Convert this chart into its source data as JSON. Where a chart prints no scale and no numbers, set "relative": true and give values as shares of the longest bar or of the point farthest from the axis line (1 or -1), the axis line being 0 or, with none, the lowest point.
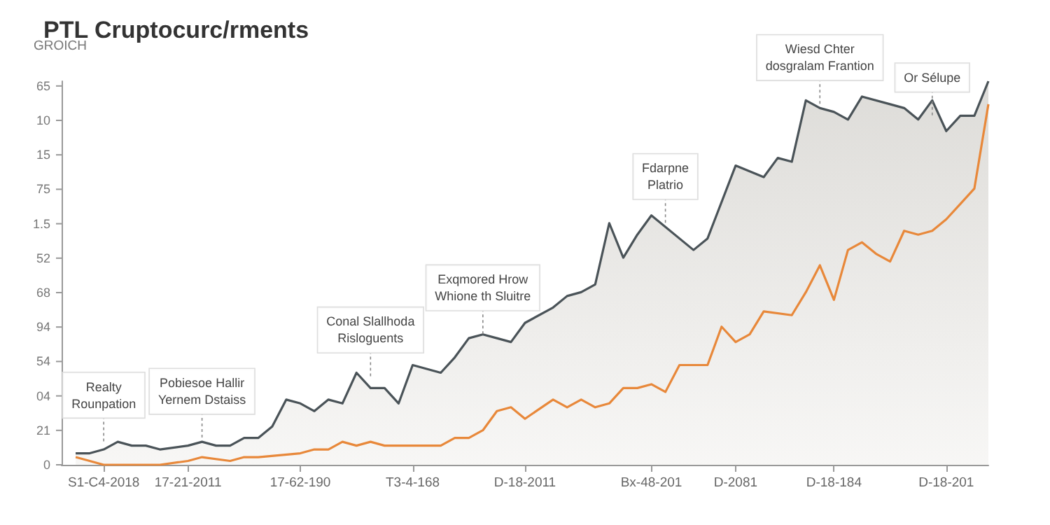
{
  "chart_data": {
    "type": "line",
    "title": "PTL Cruptocurc/rments",
    "ylabel": "GROICH",
    "relative": true,
    "categories": [
      null,
      null,
      null,
      "S1-C4-2018",
      null,
      null,
      null,
      null,
      null,
      "17-21-2011",
      null,
      null,
      null,
      null,
      null,
      null,
      null,
      "17-62-190",
      null,
      null,
      null,
      null,
      null,
      null,
      null,
      "T3-4-168",
      null,
      null,
      null,
      null,
      null,
      null,
      null,
      "D-18-2011",
      null,
      null,
      null,
      null,
      null,
      null,
      null,
      null,
      "Bx-48-201",
      null,
      null,
      null,
      null,
      null,
      "D-2081",
      null,
      null,
      null,
      null,
      null,
      null,
      "D-18-184",
      null,
      null,
      null,
      null,
      null,
      null,
      null,
      "D-18-201",
      null,
      null,
      null
    ],
    "grid": false,
    "marker": "none",
    "line_style": "solid",
    "series": [
      {
        "type": "area",
        "color": "#4a5358",
        "values": [
          null,
          0.03,
          0.03,
          0.04,
          0.06,
          0.05,
          0.05,
          0.04,
          null,
          0.05,
          0.06,
          0.05,
          0.05,
          0.07,
          0.07,
          0.1,
          0.17,
          0.16,
          0.14,
          0.17,
          0.16,
          0.24,
          0.2,
          0.2,
          0.16,
          0.26,
          null,
          0.24,
          0.28,
          0.33,
          0.34,
          0.33,
          0.32,
          0.37,
          null,
          0.41,
          0.44,
          0.45,
          0.47,
          0.63,
          0.54,
          0.6,
          0.65,
          null,
          null,
          0.56,
          0.59,
          null,
          0.78,
          null,
          0.75,
          0.8,
          0.79,
          0.95,
          0.93,
          0.92,
          0.9,
          0.96,
          null,
          0.94,
          0.93,
          0.9,
          0.95,
          0.87,
          0.91,
          0.91,
          1
        ]
      },
      {
        "color": "#e8883a",
        "values": [
          null,
          0.02,
          null,
          0,
          null,
          null,
          null,
          0,
          null,
          0.01,
          0.02,
          null,
          0.01,
          0.02,
          0.02,
          null,
          null,
          0.03,
          0.04,
          0.04,
          0.06,
          0.05,
          0.06,
          0.05,
          null,
          0.05,
          0.05,
          0.05,
          0.07,
          0.07,
          0.09,
          0.14,
          0.15,
          0.12,
          null,
          0.17,
          0.15,
          0.17,
          0.15,
          0.16,
          0.2,
          0.2,
          0.21,
          0.19,
          0.26,
          null,
          0.26,
          0.36,
          0.32,
          0.34,
          0.4,
          null,
          0.39,
          0.45,
          0.52,
          0.43,
          0.56,
          0.58,
          0.55,
          0.53,
          0.61,
          0.6,
          0.61,
          0.64,
          0.68,
          0.72,
          0.94
        ]
      }
    ],
    "annotations": [
      "Realty\nRounpation",
      "Pobiesoe Hallir\nYernem Dstaiss",
      "Conal Slallhoda\nRisloguents",
      "Exqmored Hrow\nWhione th Sluitre",
      "Fdarpne\nPlatrio",
      "Wiesd Chter\ndosgralam Frantion",
      "Or Sélupe",
      "0",
      "21",
      "04",
      "54",
      "94",
      "68",
      "52",
      "1.5",
      "75",
      "15",
      "10",
      "65"
    ]
  }
}
